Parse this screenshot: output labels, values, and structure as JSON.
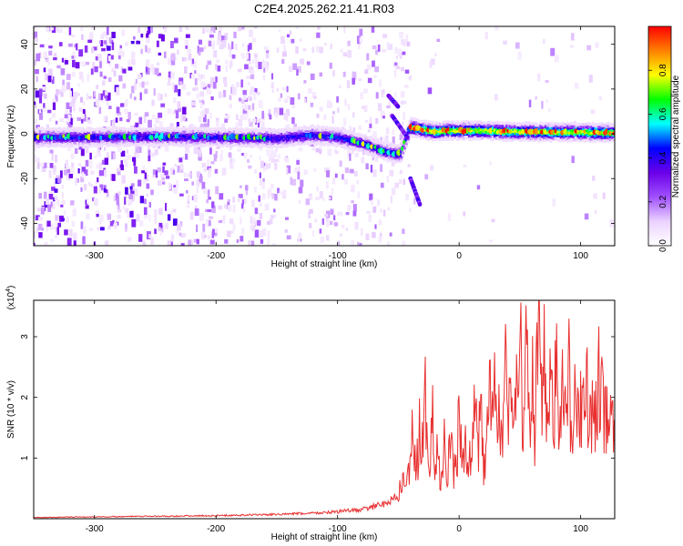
{
  "title": "C2E4.2025.262.21.41.R03",
  "chart_data": [
    {
      "type": "heatmap",
      "xlabel": "Height of straight line (km)",
      "ylabel": "Frequency (Hz)",
      "xlim": [
        -350,
        128
      ],
      "ylim": [
        -50,
        48
      ],
      "x_ticks": [
        -300,
        -200,
        -100,
        0,
        100
      ],
      "y_ticks": [
        -40,
        -20,
        0,
        20,
        40
      ],
      "colorbar": {
        "label": "Normalized spectral amplitude",
        "range": [
          0,
          1
        ],
        "ticks": [
          "0.0",
          "0.2",
          "0.4",
          "0.6",
          "0.8"
        ],
        "tick_values": [
          0,
          0.2,
          0.4,
          0.6,
          0.8
        ],
        "colors": [
          "#ffffff",
          "#ebd2ff",
          "#a050ff",
          "#6a00e8",
          "#0000ff",
          "#00ffff",
          "#00ff00",
          "#ffff00",
          "#ff8000",
          "#ff0000"
        ]
      },
      "ridge": {
        "x": [
          -350,
          -300,
          -250,
          -200,
          -150,
          -120,
          -100,
          -80,
          -60,
          -48,
          -40,
          -30,
          -20,
          -10,
          0,
          20,
          40,
          60,
          80,
          100,
          128
        ],
        "y": [
          -1.5,
          -1.5,
          -1.2,
          -1.5,
          -2,
          -0.5,
          -1.5,
          -4,
          -8,
          -9,
          3,
          2,
          1,
          1.5,
          1.5,
          1.5,
          1,
          1,
          0.8,
          0.8,
          0.5
        ]
      }
    },
    {
      "type": "line",
      "xlabel": "Height of straight line (km)",
      "ylabel": "SNR (10 * v/v)",
      "multiplier": "(x10",
      "multiplier_exp": "4",
      "xlim": [
        -350,
        128
      ],
      "ylim": [
        0,
        36000
      ],
      "x_ticks": [
        -300,
        -200,
        -100,
        0,
        100
      ],
      "y_ticks": [
        1,
        2,
        3
      ],
      "y_tick_values": [
        10000,
        20000,
        30000
      ],
      "series": [
        {
          "color": "#e83030",
          "x": [
            -350,
            -300,
            -250,
            -200,
            -150,
            -110,
            -80,
            -60,
            -50,
            -45,
            -40,
            -38,
            -35,
            -32,
            -30,
            -28,
            -25,
            -22,
            -20,
            -18,
            -15,
            -12,
            -10,
            -8,
            -5,
            -3,
            0,
            3,
            5,
            8,
            10,
            13,
            15,
            18,
            20,
            23,
            25,
            28,
            30,
            33,
            35,
            38,
            40,
            43,
            45,
            48,
            50,
            52,
            55,
            58,
            60,
            62,
            65,
            68,
            70,
            72,
            75,
            78,
            80,
            82,
            85,
            88,
            90,
            92,
            95,
            98,
            100,
            103,
            105,
            108,
            110,
            113,
            115,
            118,
            120,
            123,
            125,
            128
          ],
          "y": [
            200,
            300,
            400,
            500,
            700,
            1000,
            1500,
            2500,
            4000,
            6500,
            9000,
            14000,
            7000,
            18000,
            11000,
            20000,
            6000,
            16000,
            9000,
            15000,
            5000,
            12000,
            4000,
            13000,
            10000,
            6000,
            17000,
            8000,
            14000,
            7000,
            12000,
            19000,
            11000,
            16000,
            9000,
            13000,
            20000,
            17000,
            24000,
            16000,
            11000,
            23000,
            19000,
            25000,
            13000,
            22000,
            36000,
            17000,
            29000,
            14000,
            24000,
            12000,
            32000,
            16000,
            27000,
            13000,
            21000,
            15000,
            29000,
            18000,
            23000,
            14000,
            26000,
            12000,
            19000,
            16000,
            21000,
            15000,
            22000,
            17000,
            20000,
            16000,
            23000,
            18000,
            17000,
            19000,
            16000,
            18000
          ]
        }
      ]
    }
  ]
}
